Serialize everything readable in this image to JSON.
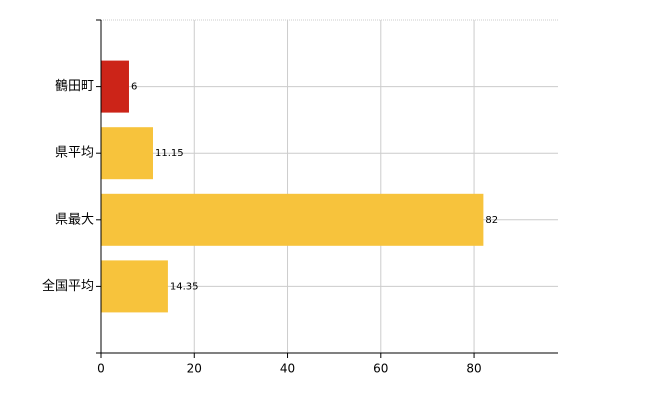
{
  "chart_data": {
    "type": "barh",
    "categories": [
      "鶴田町",
      "県平均",
      "県最大",
      "全国平均"
    ],
    "values": [
      6,
      11.15,
      82,
      14.35
    ],
    "colors": [
      "#cc2418",
      "#f7c33c",
      "#f7c33c",
      "#f7c33c"
    ],
    "xlim": [
      0,
      98
    ],
    "xticks": [
      0,
      20,
      40,
      60,
      80
    ],
    "grid": true
  }
}
